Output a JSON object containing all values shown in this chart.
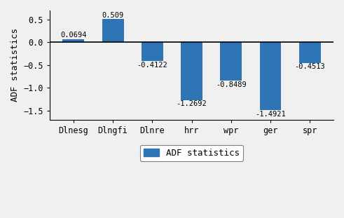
{
  "categories": [
    "Dlnesg",
    "Dlngfi",
    "Dlnre",
    "hrr",
    "wpr",
    "ger",
    "spr"
  ],
  "values": [
    0.0694,
    0.509,
    -0.4122,
    -1.2692,
    -0.8489,
    -1.4921,
    -0.4513
  ],
  "labels": [
    "0.0694",
    "0.509",
    "-0.4122",
    "-1.2692",
    "-0.8489",
    "-1.4921",
    "-0.4513"
  ],
  "bar_color": "#2e75b6",
  "ylabel": "ADF statistics",
  "ylim": [
    -1.7,
    0.7
  ],
  "yticks": [
    -1.5,
    -1.0,
    -0.5,
    0.0,
    0.5
  ],
  "ytick_labels": [
    "−1.5",
    "−1.0",
    "−0.5",
    "0.0",
    "0.5"
  ],
  "legend_label": "ADF statistics",
  "background_color": "#f0f0f0",
  "label_fontsize": 7.5,
  "tick_fontsize": 8.5,
  "ylabel_fontsize": 9,
  "bar_width": 0.55
}
